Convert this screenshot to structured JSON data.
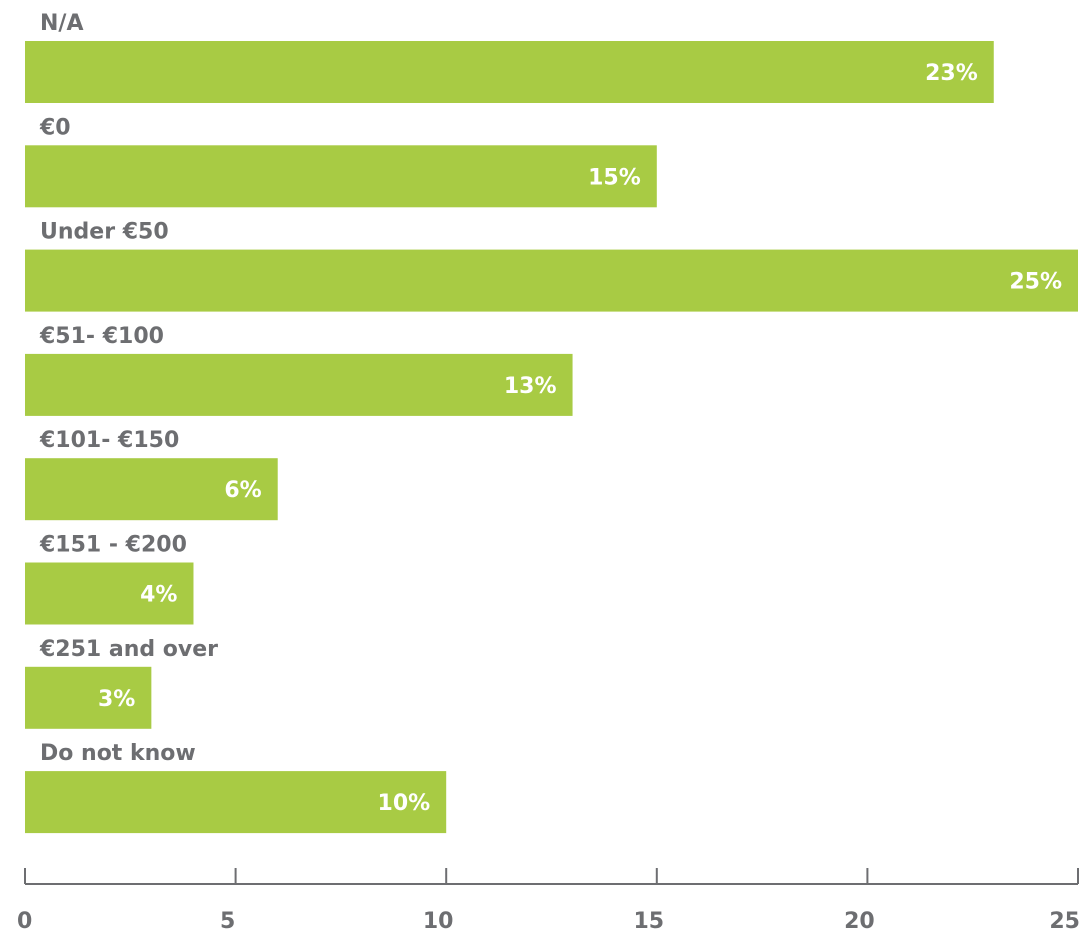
{
  "chart_data": {
    "type": "bar",
    "orientation": "horizontal",
    "categories": [
      "N/A",
      "€0",
      "Under €50",
      "€51- €100",
      "€101- €150",
      "€151 - €200",
      "€251 and over",
      "Do not know"
    ],
    "values": [
      23,
      15,
      25,
      13,
      6,
      4,
      3,
      10
    ],
    "value_labels": [
      "23%",
      "15%",
      "25%",
      "13%",
      "6%",
      "4%",
      "3%",
      "10%"
    ],
    "color": "#a8cb44",
    "xlim": [
      0,
      25
    ],
    "xticks": [
      0,
      5,
      10,
      15,
      20,
      25
    ]
  }
}
